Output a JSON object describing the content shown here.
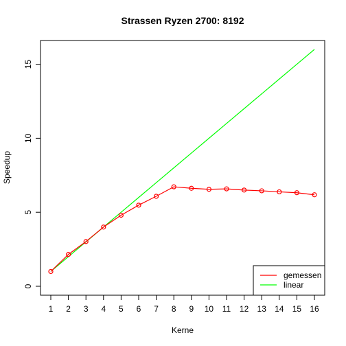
{
  "chart_data": {
    "type": "line",
    "title": "Strassen Ryzen 2700: 8192",
    "xlabel": "Kerne",
    "ylabel": "Speedup",
    "xlim": [
      1,
      16
    ],
    "ylim": [
      0,
      16
    ],
    "x": [
      1,
      2,
      3,
      4,
      5,
      6,
      7,
      8,
      9,
      10,
      11,
      12,
      13,
      14,
      15,
      16
    ],
    "xticks": [
      "1",
      "2",
      "3",
      "4",
      "5",
      "6",
      "7",
      "8",
      "9",
      "10",
      "11",
      "12",
      "13",
      "14",
      "15",
      "16"
    ],
    "yticks": [
      0,
      5,
      10,
      15
    ],
    "series": [
      {
        "name": "gemessen",
        "color": "#ff0000",
        "markers": "open-circle",
        "values": [
          1.0,
          2.15,
          3.02,
          4.0,
          4.8,
          5.48,
          6.08,
          6.72,
          6.62,
          6.55,
          6.58,
          6.5,
          6.45,
          6.38,
          6.32,
          6.18
        ]
      },
      {
        "name": "linear",
        "color": "#00ff00",
        "markers": "none",
        "values": [
          1,
          2,
          3,
          4,
          5,
          6,
          7,
          8,
          9,
          10,
          11,
          12,
          13,
          14,
          15,
          16
        ]
      }
    ],
    "legend_position": "bottom-right",
    "grid": false
  }
}
